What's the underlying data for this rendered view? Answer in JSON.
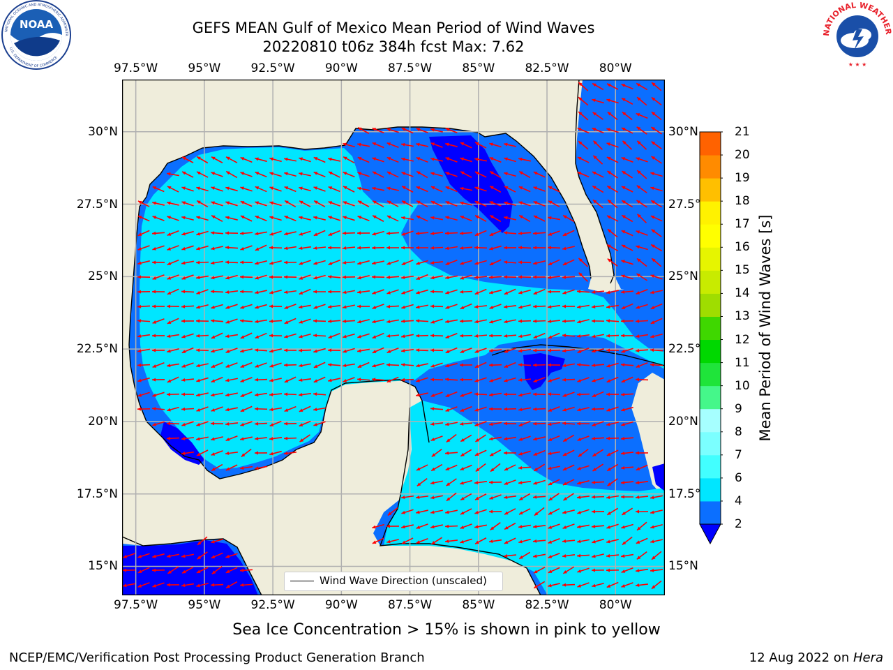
{
  "title": {
    "line1": "GEFS MEAN Gulf of Mexico Mean Period of Wind Waves",
    "line2": "20220810 t06z 384h fcst   Max: 7.62"
  },
  "axes": {
    "lon_labels": [
      "97.5°W",
      "95°W",
      "92.5°W",
      "90°W",
      "87.5°W",
      "85°W",
      "82.5°W",
      "80°W"
    ],
    "lat_labels": [
      "30°N",
      "27.5°N",
      "25°N",
      "22.5°N",
      "20°N",
      "17.5°N",
      "15°N"
    ]
  },
  "chart_data": {
    "type": "heatmap",
    "variable": "Mean Period of Wind Waves",
    "max_value": 7.62,
    "lon_ticks": [
      -97.5,
      -95,
      -92.5,
      -90,
      -87.5,
      -85,
      -82.5,
      -80
    ],
    "lat_ticks": [
      30,
      27.5,
      25,
      22.5,
      20,
      17.5,
      15
    ],
    "lon_range": [
      -98,
      -78.2
    ],
    "lat_range": [
      14.0,
      31.8
    ],
    "colorbar": {
      "label": "Mean Period of Wind Waves [s]",
      "levels": [
        2,
        4,
        6,
        7,
        8,
        9,
        10,
        11,
        12,
        13,
        14,
        15,
        16,
        17,
        18,
        19,
        20,
        21
      ],
      "colors": [
        "#0b6fff",
        "#00e6ff",
        "#42ffff",
        "#7bffff",
        "#a6ffff",
        "#45f78a",
        "#1fe43a",
        "#00d800",
        "#3fd700",
        "#9fdd00",
        "#c8eb00",
        "#e6f500",
        "#ffff00",
        "#fff200",
        "#ffbf00",
        "#ff8b00",
        "#ff6200",
        "#ff3400",
        "#ff0000"
      ],
      "under_color": "#0000ff"
    },
    "legend": "Wind Wave Direction (unscaled)"
  },
  "subtitle": "Sea Ice Concentration > 15% is shown in pink to yellow",
  "footer": {
    "left": "NCEP/EMC/Verification Post Processing Product Generation Branch",
    "right_date": "12 Aug 2022 on ",
    "right_host": "Hera"
  },
  "logos": {
    "noaa": "NOAA",
    "nws": "NATIONAL WEATHER SERVICE"
  }
}
